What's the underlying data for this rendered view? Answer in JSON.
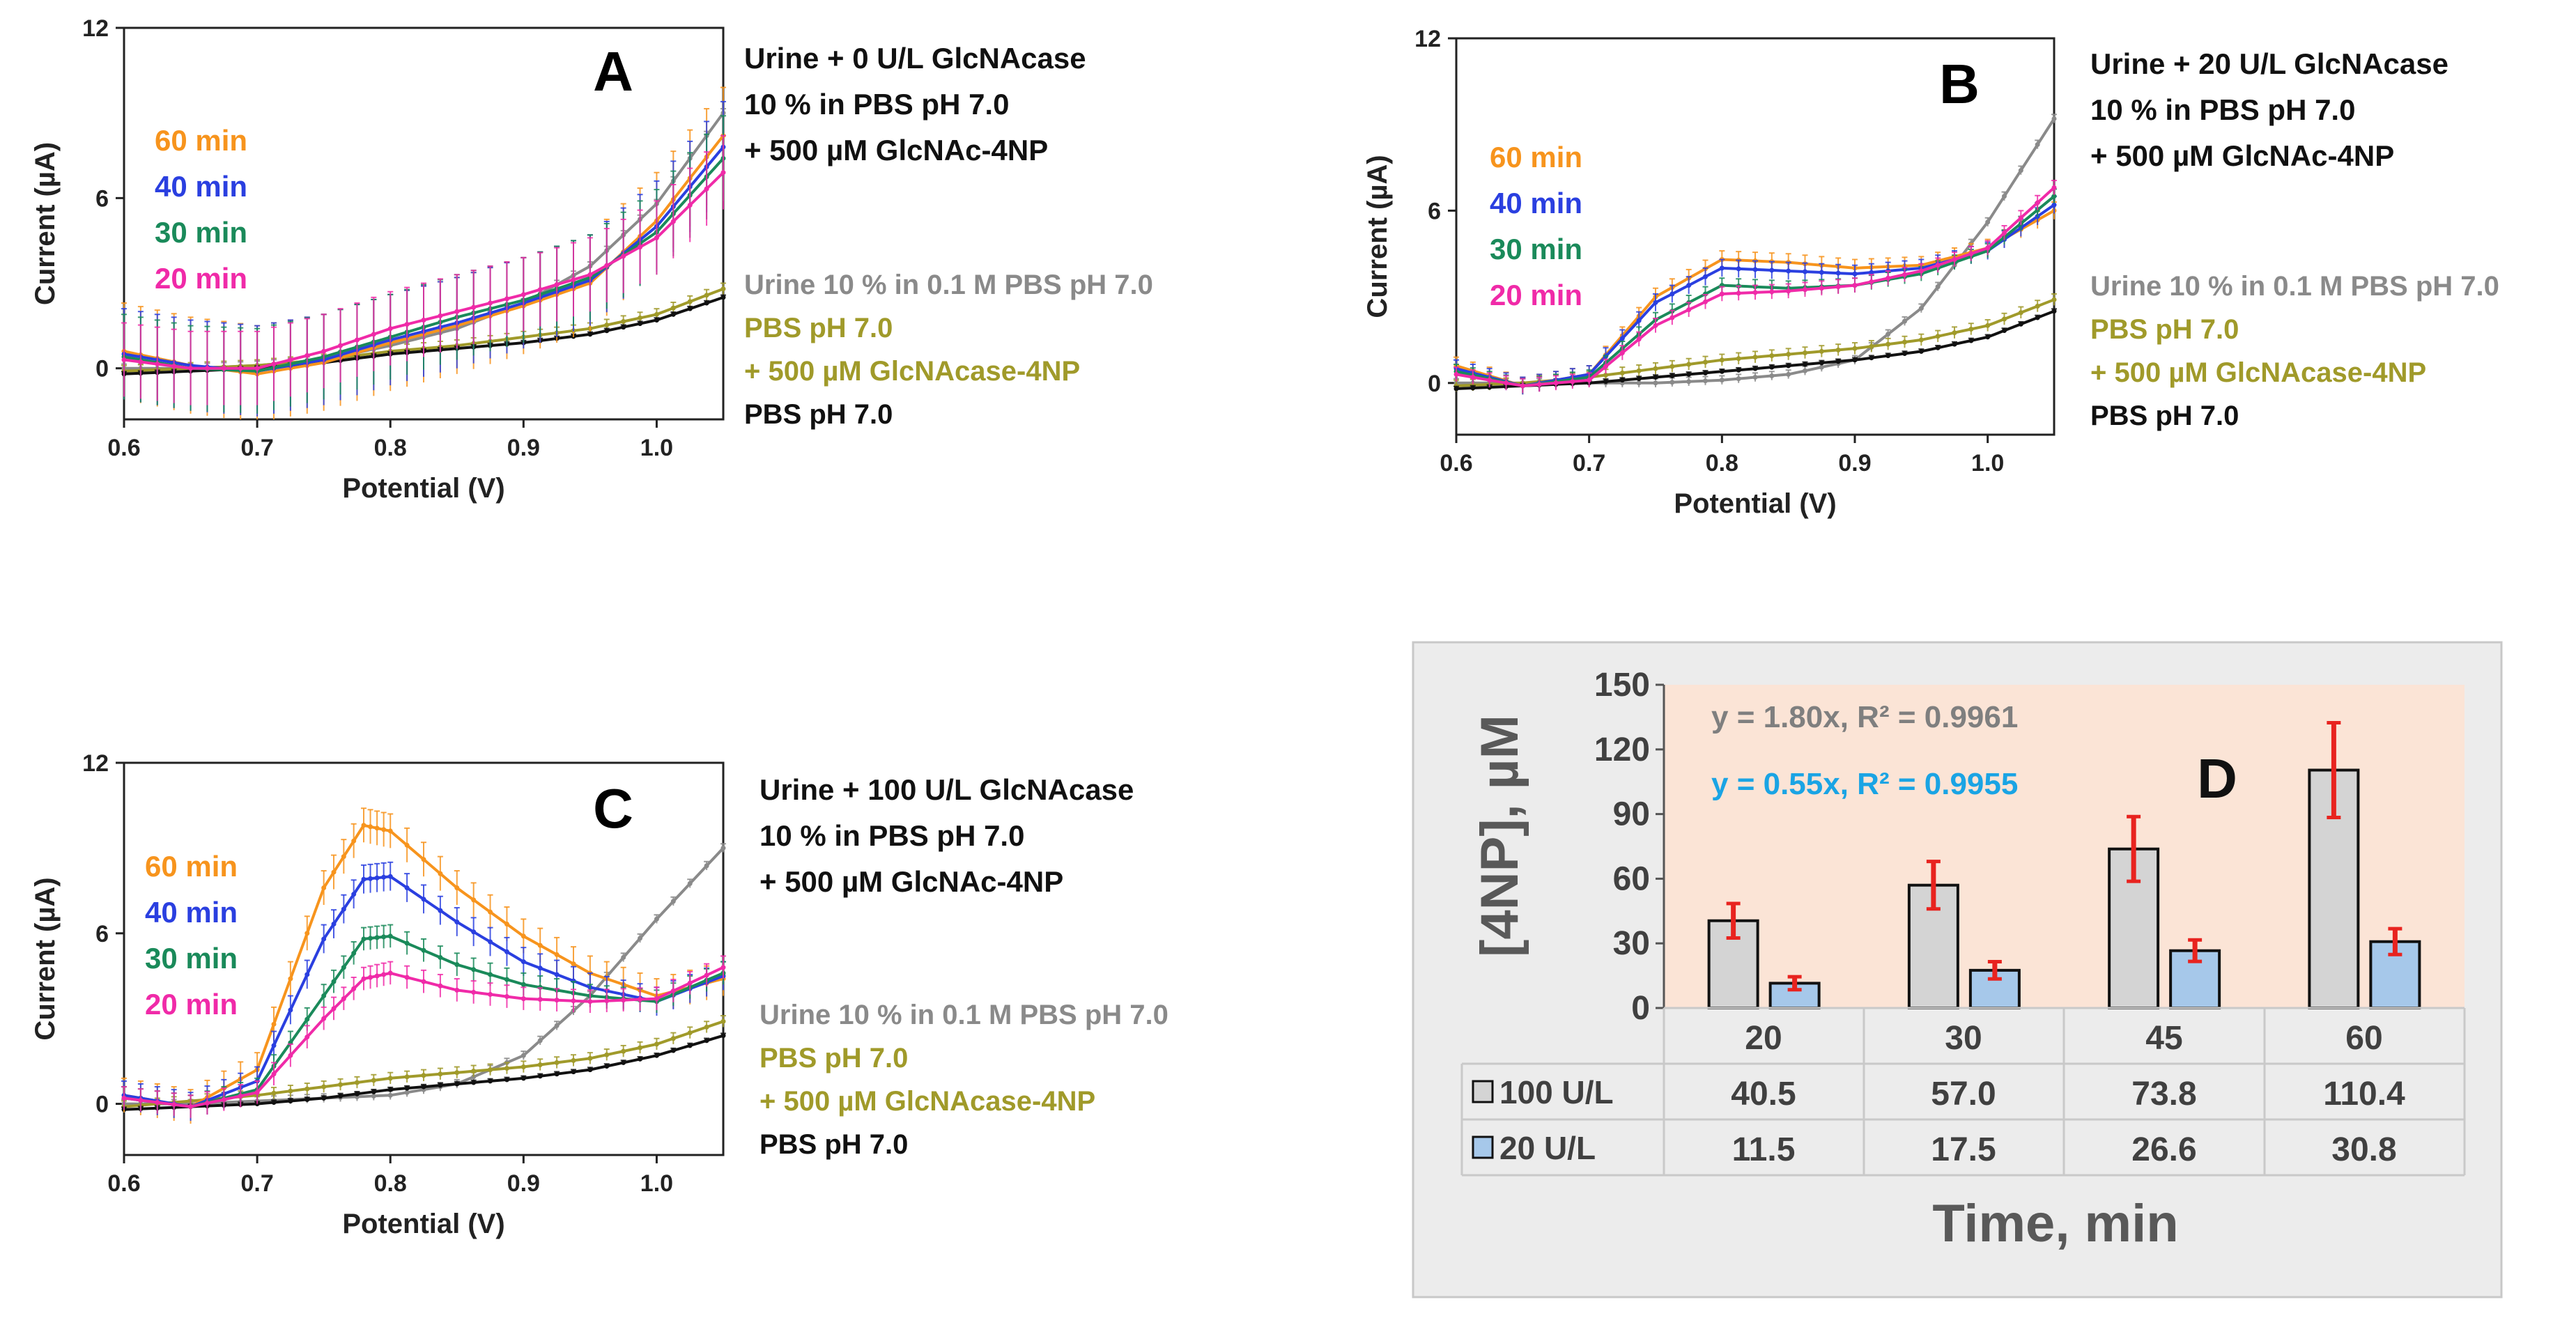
{
  "colors": {
    "c60": "#f7941d",
    "c40": "#2a3fe0",
    "c30": "#1a8a5a",
    "c20": "#f02aa8",
    "urine": "#8a8a8a",
    "pbs_sub": "#a09a2a",
    "pbs": "#111111",
    "red": "#e8231f",
    "grey_bar": "#d4d4d4",
    "blue_bar": "#a6c8ea",
    "d_bg": "#ececec",
    "d_plot": "#fbe4d6",
    "eq1": "#7f7f7f",
    "eq2": "#1aa4e4"
  },
  "chart_data": [
    {
      "type": "line",
      "panel": "A",
      "xlabel": "Potential (V)",
      "ylabel": "Current (µA)",
      "xlim": [
        0.6,
        1.05
      ],
      "ylim": [
        -1.8,
        12
      ],
      "xticks": [
        "0.6",
        "0.7",
        "0.8",
        "0.9",
        "1.0"
      ],
      "yticks": [
        "0",
        "6",
        "12"
      ],
      "title_lines": [
        "Urine + 0 U/L GlcNAcase",
        "10 % in PBS pH 7.0",
        "+ 500  µM GlcNAc-4NP"
      ],
      "time_labels": [
        "60 min",
        "40 min",
        "30 min",
        "20 min"
      ],
      "control_labels": [
        "Urine 10 % in 0.1 M PBS pH 7.0",
        "PBS pH 7.0",
        "+ 500 µM GlcNAcase-4NP",
        "PBS pH 7.0"
      ],
      "series": [
        {
          "name": "20 min",
          "color_key": "c20",
          "err": 1.3,
          "x": [
            0.6,
            0.65,
            0.7,
            0.75,
            0.8,
            0.85,
            0.9,
            0.95,
            1.0,
            1.05
          ],
          "y": [
            0.3,
            0.0,
            0.0,
            0.6,
            1.4,
            2.0,
            2.6,
            3.3,
            4.6,
            6.9
          ]
        },
        {
          "name": "30 min",
          "color_key": "c30",
          "err": 1.5,
          "x": [
            0.6,
            0.65,
            0.7,
            0.75,
            0.8,
            0.85,
            0.9,
            0.95,
            1.0,
            1.05
          ],
          "y": [
            0.4,
            0.0,
            -0.1,
            0.4,
            1.1,
            1.8,
            2.4,
            3.2,
            4.8,
            7.4
          ]
        },
        {
          "name": "40 min",
          "color_key": "c40",
          "err": 1.6,
          "x": [
            0.6,
            0.65,
            0.7,
            0.75,
            0.8,
            0.85,
            0.9,
            0.95,
            1.0,
            1.05
          ],
          "y": [
            0.5,
            0.1,
            -0.1,
            0.3,
            1.0,
            1.6,
            2.3,
            3.1,
            5.0,
            7.8
          ]
        },
        {
          "name": "60 min",
          "color_key": "c60",
          "err": 1.7,
          "x": [
            0.6,
            0.65,
            0.7,
            0.75,
            0.8,
            0.85,
            0.9,
            0.95,
            1.0,
            1.05
          ],
          "y": [
            0.6,
            0.1,
            -0.2,
            0.2,
            0.9,
            1.5,
            2.2,
            3.0,
            5.2,
            8.2
          ]
        },
        {
          "name": "Urine 10 % in 0.1 M PBS pH 7.0",
          "color_key": "urine",
          "err": 0.15,
          "x": [
            0.6,
            0.65,
            0.7,
            0.75,
            0.8,
            0.85,
            0.9,
            0.95,
            1.0,
            1.05
          ],
          "y": [
            0.0,
            0.0,
            0.1,
            0.3,
            0.8,
            1.4,
            2.3,
            3.6,
            5.8,
            9.0
          ]
        },
        {
          "name": "+ 500 µM GlcNAcase-4NP",
          "color_key": "pbs_sub",
          "err": 0.2,
          "x": [
            0.6,
            0.65,
            0.7,
            0.75,
            0.8,
            0.85,
            0.9,
            0.95,
            1.0,
            1.05
          ],
          "y": [
            -0.1,
            0.0,
            0.1,
            0.3,
            0.6,
            0.8,
            1.1,
            1.4,
            1.9,
            2.8
          ]
        },
        {
          "name": "PBS pH 7.0",
          "color_key": "pbs",
          "err": 0.08,
          "x": [
            0.6,
            0.65,
            0.7,
            0.75,
            0.8,
            0.85,
            0.9,
            0.95,
            1.0,
            1.05
          ],
          "y": [
            -0.2,
            -0.1,
            0.0,
            0.2,
            0.5,
            0.7,
            0.9,
            1.2,
            1.7,
            2.5
          ]
        }
      ]
    },
    {
      "type": "line",
      "panel": "B",
      "xlabel": "Potential (V)",
      "ylabel": "Current (µA)",
      "xlim": [
        0.6,
        1.05
      ],
      "ylim": [
        -1.8,
        12
      ],
      "xticks": [
        "0.6",
        "0.7",
        "0.8",
        "0.9",
        "1.0"
      ],
      "yticks": [
        "0",
        "6",
        "12"
      ],
      "title_lines": [
        "Urine + 20 U/L GlcNAcase",
        "10 % in PBS pH 7.0",
        "+ 500  µM GlcNAc-4NP"
      ],
      "time_labels": [
        "60 min",
        "40 min",
        "30 min",
        "20 min"
      ],
      "control_labels": [
        "Urine 10 % in 0.1 M PBS pH 7.0",
        "PBS pH 7.0",
        "+ 500 µM GlcNAcase-4NP",
        "PBS pH 7.0"
      ],
      "series": [
        {
          "name": "20 min",
          "color_key": "c20",
          "err": 0.25,
          "x": [
            0.6,
            0.65,
            0.7,
            0.75,
            0.8,
            0.85,
            0.9,
            0.95,
            1.0,
            1.05
          ],
          "y": [
            0.3,
            -0.1,
            0.1,
            2.0,
            3.1,
            3.2,
            3.4,
            3.9,
            4.7,
            6.8
          ]
        },
        {
          "name": "30 min",
          "color_key": "c30",
          "err": 0.25,
          "x": [
            0.6,
            0.65,
            0.7,
            0.75,
            0.8,
            0.85,
            0.9,
            0.95,
            1.0,
            1.05
          ],
          "y": [
            0.4,
            -0.1,
            0.2,
            2.2,
            3.4,
            3.3,
            3.4,
            3.8,
            4.6,
            6.5
          ]
        },
        {
          "name": "40 min",
          "color_key": "c40",
          "err": 0.3,
          "x": [
            0.6,
            0.65,
            0.7,
            0.75,
            0.8,
            0.85,
            0.9,
            0.95,
            1.0,
            1.05
          ],
          "y": [
            0.5,
            -0.1,
            0.3,
            2.8,
            4.0,
            3.9,
            3.8,
            4.0,
            4.6,
            6.2
          ]
        },
        {
          "name": "60 min",
          "color_key": "c60",
          "err": 0.3,
          "x": [
            0.6,
            0.65,
            0.7,
            0.75,
            0.8,
            0.85,
            0.9,
            0.95,
            1.0,
            1.05
          ],
          "y": [
            0.6,
            -0.1,
            0.3,
            3.0,
            4.3,
            4.2,
            4.0,
            4.1,
            4.7,
            6.0
          ]
        },
        {
          "name": "Urine 10 % in 0.1 M PBS pH 7.0",
          "color_key": "urine",
          "err": 0.15,
          "x": [
            0.6,
            0.65,
            0.7,
            0.75,
            0.8,
            0.85,
            0.9,
            0.95,
            1.0,
            1.05
          ],
          "y": [
            0.0,
            0.0,
            0.0,
            0.0,
            0.1,
            0.3,
            0.8,
            2.6,
            5.6,
            9.2
          ]
        },
        {
          "name": "+ 500 µM GlcNAcase-4NP",
          "color_key": "pbs_sub",
          "err": 0.2,
          "x": [
            0.6,
            0.65,
            0.7,
            0.75,
            0.8,
            0.85,
            0.9,
            0.95,
            1.0,
            1.05
          ],
          "y": [
            -0.1,
            0.0,
            0.2,
            0.5,
            0.8,
            1.0,
            1.2,
            1.5,
            2.0,
            2.9
          ]
        },
        {
          "name": "PBS pH 7.0",
          "color_key": "pbs",
          "err": 0.08,
          "x": [
            0.6,
            0.65,
            0.7,
            0.75,
            0.8,
            0.85,
            0.9,
            0.95,
            1.0,
            1.05
          ],
          "y": [
            -0.2,
            -0.1,
            0.0,
            0.2,
            0.4,
            0.6,
            0.8,
            1.1,
            1.6,
            2.5
          ]
        }
      ]
    },
    {
      "type": "line",
      "panel": "C",
      "xlabel": "Potential (V)",
      "ylabel": "Current (µA)",
      "xlim": [
        0.6,
        1.05
      ],
      "ylim": [
        -1.8,
        12
      ],
      "xticks": [
        "0.6",
        "0.7",
        "0.8",
        "0.9",
        "1.0"
      ],
      "yticks": [
        "0",
        "6",
        "12"
      ],
      "title_lines": [
        "Urine + 100 U/L GlcNAcase",
        "10 % in PBS pH 7.0",
        "+ 500  µM GlcNAc-4NP"
      ],
      "time_labels": [
        "60 min",
        "40 min",
        "30 min",
        "20 min"
      ],
      "control_labels": [
        "Urine 10 % in 0.1 M PBS pH 7.0",
        "PBS pH 7.0",
        "+ 500 µM GlcNAcase-4NP",
        "PBS pH 7.0"
      ],
      "series": [
        {
          "name": "20 min",
          "color_key": "c20",
          "err": 0.4,
          "x": [
            0.6,
            0.65,
            0.7,
            0.75,
            0.78,
            0.8,
            0.85,
            0.9,
            0.95,
            1.0,
            1.05
          ],
          "y": [
            0.2,
            -0.1,
            0.4,
            3.0,
            4.4,
            4.6,
            4.0,
            3.7,
            3.6,
            3.7,
            4.8
          ]
        },
        {
          "name": "30 min",
          "color_key": "c30",
          "err": 0.4,
          "x": [
            0.6,
            0.65,
            0.7,
            0.75,
            0.78,
            0.8,
            0.85,
            0.9,
            0.95,
            1.0,
            1.05
          ],
          "y": [
            0.2,
            -0.1,
            0.5,
            3.8,
            5.8,
            5.9,
            4.9,
            4.2,
            3.8,
            3.6,
            4.6
          ]
        },
        {
          "name": "40 min",
          "color_key": "c40",
          "err": 0.5,
          "x": [
            0.6,
            0.65,
            0.7,
            0.75,
            0.78,
            0.8,
            0.85,
            0.9,
            0.95,
            1.0,
            1.05
          ],
          "y": [
            0.3,
            -0.1,
            0.8,
            5.8,
            7.9,
            8.0,
            6.4,
            5.0,
            4.1,
            3.6,
            4.5
          ]
        },
        {
          "name": "60 min",
          "color_key": "c60",
          "err": 0.6,
          "x": [
            0.6,
            0.65,
            0.7,
            0.75,
            0.78,
            0.8,
            0.85,
            0.9,
            0.95,
            1.0,
            1.05
          ],
          "y": [
            0.3,
            -0.1,
            1.2,
            7.6,
            9.8,
            9.6,
            7.6,
            5.9,
            4.6,
            3.8,
            4.4
          ]
        },
        {
          "name": "Urine 10 % in 0.1 M PBS pH 7.0",
          "color_key": "urine",
          "err": 0.15,
          "x": [
            0.6,
            0.65,
            0.7,
            0.75,
            0.8,
            0.85,
            0.9,
            0.95,
            1.0,
            1.05
          ],
          "y": [
            0.0,
            0.0,
            0.1,
            0.2,
            0.3,
            0.7,
            1.7,
            3.8,
            6.5,
            9.0
          ]
        },
        {
          "name": "+ 500 µM GlcNAcase-4NP",
          "color_key": "pbs_sub",
          "err": 0.2,
          "x": [
            0.6,
            0.65,
            0.7,
            0.75,
            0.8,
            0.85,
            0.9,
            0.95,
            1.0,
            1.05
          ],
          "y": [
            -0.1,
            0.1,
            0.3,
            0.6,
            0.9,
            1.1,
            1.3,
            1.6,
            2.1,
            2.9
          ]
        },
        {
          "name": "PBS pH 7.0",
          "color_key": "pbs",
          "err": 0.08,
          "x": [
            0.6,
            0.65,
            0.7,
            0.75,
            0.8,
            0.85,
            0.9,
            0.95,
            1.0,
            1.05
          ],
          "y": [
            -0.2,
            -0.1,
            0.0,
            0.2,
            0.5,
            0.7,
            0.9,
            1.2,
            1.7,
            2.4
          ]
        }
      ]
    },
    {
      "type": "bar",
      "panel": "D",
      "title": "D",
      "ylabel": "[4NP], µM",
      "xlabel": "Time, min",
      "ylim": [
        0,
        150
      ],
      "yticks": [
        "0",
        "30",
        "60",
        "90",
        "120",
        "150"
      ],
      "categories": [
        "20",
        "30",
        "45",
        "60"
      ],
      "equations": [
        "y = 1.80x, R² = 0.9961",
        "y = 0.55x, R² = 0.9955"
      ],
      "series": [
        {
          "name": "100 U/L",
          "color_key": "grey_bar",
          "values": [
            40.5,
            57.0,
            73.8,
            110.4
          ],
          "display": [
            "40.5",
            "57.0",
            "73.8",
            "110.4"
          ],
          "errors": [
            8,
            11,
            15,
            22
          ]
        },
        {
          "name": "20 U/L",
          "color_key": "blue_bar",
          "values": [
            11.5,
            17.5,
            26.6,
            30.8
          ],
          "display": [
            "11.5",
            "17.5",
            "26.6",
            "30.8"
          ],
          "errors": [
            3,
            4,
            5,
            6
          ]
        }
      ]
    }
  ]
}
